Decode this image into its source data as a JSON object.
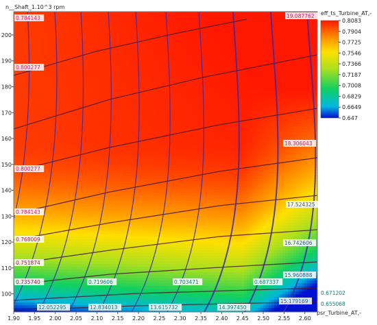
{
  "chart_data": {
    "type": "heatmap",
    "title": "",
    "ylabel": "n__Shaft_1.10^3 rpm",
    "xlabel": "psr_Turbine_AT,-",
    "colorbar_title": "eff_ts_Turbine_AT,-",
    "xlim": [
      1.9,
      2.63
    ],
    "ylim": [
      93,
      209
    ],
    "x_ticks": [
      "1.90",
      "1.95",
      "2.00",
      "2.05",
      "2.10",
      "2.15",
      "2.20",
      "2.25",
      "2.30",
      "2.35",
      "2.40",
      "2.45",
      "2.50",
      "2.55",
      "2.60"
    ],
    "y_ticks": [
      "100",
      "110",
      "120",
      "130",
      "140",
      "150",
      "160",
      "170",
      "180",
      "190",
      "200"
    ],
    "colorbar_ticks": [
      "0.8083",
      "0.7904",
      "0.7725",
      "0.7546",
      "0.7366",
      "0.7187",
      "0.7008",
      "0.6829",
      "0.6649",
      "0.647"
    ],
    "colorbar_range": [
      0.647,
      0.8083
    ],
    "efficiency_contours": [
      {
        "label": "0.784143",
        "y_left": 202
      },
      {
        "label": "0.800277",
        "y_left": 184
      },
      {
        "label": "0.800277",
        "y_left": 147
      },
      {
        "label": "0.784143",
        "y_left": 131
      },
      {
        "label": "0.768009",
        "y_left": 121
      },
      {
        "label": "0.751874",
        "y_left": 111
      },
      {
        "label": "0.735740",
        "y_left": 103
      },
      {
        "label": "0.719606",
        "y_left": 103
      },
      {
        "label": "0.703471",
        "y_left": 103
      },
      {
        "label": "0.687337",
        "y_left": 103
      },
      {
        "label": "0.671202",
        "y_left": 100
      },
      {
        "label": "0.655068",
        "y_left": 96
      }
    ],
    "massflow_contours": [
      {
        "label": "12.052295"
      },
      {
        "label": "12.834013"
      },
      {
        "label": "13.615732"
      },
      {
        "label": "14.397450"
      },
      {
        "label": "15.179169"
      },
      {
        "label": "15.960888"
      },
      {
        "label": "16.742606"
      },
      {
        "label": "17.524325"
      },
      {
        "label": "18.306043"
      },
      {
        "label": "19.087762"
      }
    ]
  }
}
